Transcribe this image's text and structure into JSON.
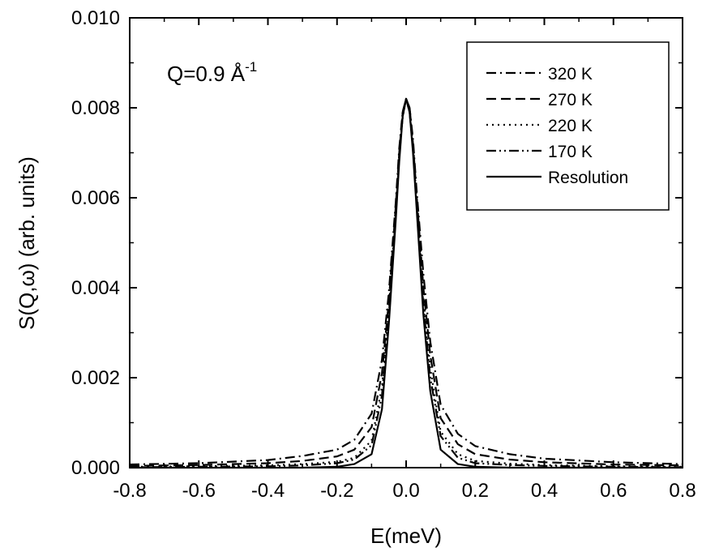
{
  "chart_data": {
    "type": "line",
    "annotation": {
      "text": "Q=0.9 Å",
      "superscript": "-1"
    },
    "xlabel": "E(meV)",
    "ylabel": "S(Q,ω) (arb. units)",
    "xlim": [
      -0.8,
      0.8
    ],
    "ylim": [
      0.0,
      0.01
    ],
    "x_ticks": [
      -0.8,
      -0.6,
      -0.4,
      -0.2,
      0.0,
      0.2,
      0.4,
      0.6,
      0.8
    ],
    "x_tick_labels": [
      "-0.8",
      "-0.6",
      "-0.4",
      "-0.2",
      "0.0",
      "0.2",
      "0.4",
      "0.6",
      "0.8"
    ],
    "y_ticks": [
      0.0,
      0.002,
      0.004,
      0.006,
      0.008,
      0.01
    ],
    "y_tick_labels": [
      "0.000",
      "0.002",
      "0.004",
      "0.006",
      "0.008",
      "0.010"
    ],
    "grid": false,
    "legend_position": "top-right",
    "line_color": "#000000",
    "series": [
      {
        "name": "320 K",
        "dash": "dash-dot",
        "x": [
          -0.8,
          -0.6,
          -0.4,
          -0.3,
          -0.2,
          -0.15,
          -0.1,
          -0.07,
          -0.05,
          -0.03,
          -0.02,
          -0.01,
          0.0,
          0.01,
          0.02,
          0.03,
          0.05,
          0.07,
          0.1,
          0.15,
          0.2,
          0.3,
          0.4,
          0.6,
          0.8
        ],
        "y": [
          7e-05,
          0.0001,
          0.00017,
          0.00026,
          0.0004,
          0.00062,
          0.0012,
          0.0024,
          0.0039,
          0.0059,
          0.0071,
          0.0079,
          0.0082,
          0.008,
          0.0073,
          0.0062,
          0.0043,
          0.0028,
          0.0014,
          0.00075,
          0.00048,
          0.0003,
          0.0002,
          0.00012,
          8e-05
        ]
      },
      {
        "name": "270 K",
        "dash": "dash",
        "x": [
          -0.8,
          -0.6,
          -0.4,
          -0.3,
          -0.2,
          -0.15,
          -0.1,
          -0.07,
          -0.05,
          -0.03,
          -0.02,
          -0.01,
          0.0,
          0.01,
          0.02,
          0.03,
          0.05,
          0.07,
          0.1,
          0.15,
          0.2,
          0.3,
          0.4,
          0.6,
          0.8
        ],
        "y": [
          4e-05,
          6e-05,
          0.0001,
          0.00015,
          0.00025,
          0.0004,
          0.0009,
          0.0021,
          0.0037,
          0.0058,
          0.007,
          0.0079,
          0.0082,
          0.008,
          0.0072,
          0.0061,
          0.004,
          0.0025,
          0.0011,
          0.00052,
          0.0003,
          0.00018,
          0.00012,
          7e-05,
          5e-05
        ]
      },
      {
        "name": "220 K",
        "dash": "dot",
        "x": [
          -0.8,
          -0.6,
          -0.4,
          -0.3,
          -0.2,
          -0.15,
          -0.1,
          -0.07,
          -0.05,
          -0.03,
          -0.02,
          -0.01,
          0.0,
          0.01,
          0.02,
          0.03,
          0.05,
          0.07,
          0.1,
          0.15,
          0.2,
          0.3,
          0.4,
          0.6,
          0.8
        ],
        "y": [
          2e-05,
          3e-05,
          5e-05,
          8e-05,
          0.00013,
          0.00022,
          0.0006,
          0.0018,
          0.0035,
          0.0057,
          0.0069,
          0.0078,
          0.0082,
          0.0079,
          0.0071,
          0.006,
          0.0038,
          0.0022,
          0.0008,
          0.0003,
          0.00015,
          9e-05,
          6e-05,
          3e-05,
          2e-05
        ]
      },
      {
        "name": "170 K",
        "dash": "dash-dot-dot",
        "x": [
          -0.8,
          -0.6,
          -0.4,
          -0.3,
          -0.2,
          -0.15,
          -0.1,
          -0.07,
          -0.05,
          -0.03,
          -0.02,
          -0.01,
          0.0,
          0.01,
          0.02,
          0.03,
          0.05,
          0.07,
          0.1,
          0.15,
          0.2,
          0.3,
          0.4,
          0.6,
          0.8
        ],
        "y": [
          1e-05,
          2e-05,
          3e-05,
          5e-05,
          0.0001,
          0.00018,
          0.0005,
          0.0016,
          0.0034,
          0.0056,
          0.0069,
          0.0078,
          0.0082,
          0.0079,
          0.0071,
          0.0059,
          0.0036,
          0.002,
          0.0007,
          0.00022,
          0.0001,
          6e-05,
          4e-05,
          2e-05,
          1e-05
        ]
      },
      {
        "name": "Resolution",
        "dash": "solid",
        "x": [
          -0.8,
          -0.6,
          -0.4,
          -0.3,
          -0.2,
          -0.15,
          -0.1,
          -0.07,
          -0.05,
          -0.03,
          -0.02,
          -0.01,
          0.0,
          0.01,
          0.02,
          0.03,
          0.05,
          0.07,
          0.1,
          0.15,
          0.2,
          0.3,
          0.4,
          0.6,
          0.8
        ],
        "y": [
          0.0,
          0.0,
          0.0,
          0.0,
          2e-05,
          8e-05,
          0.0003,
          0.0013,
          0.0032,
          0.0055,
          0.0068,
          0.0078,
          0.0082,
          0.0079,
          0.007,
          0.0058,
          0.0034,
          0.0017,
          0.0004,
          8e-05,
          2e-05,
          0.0,
          0.0,
          0.0,
          0.0
        ]
      }
    ]
  }
}
